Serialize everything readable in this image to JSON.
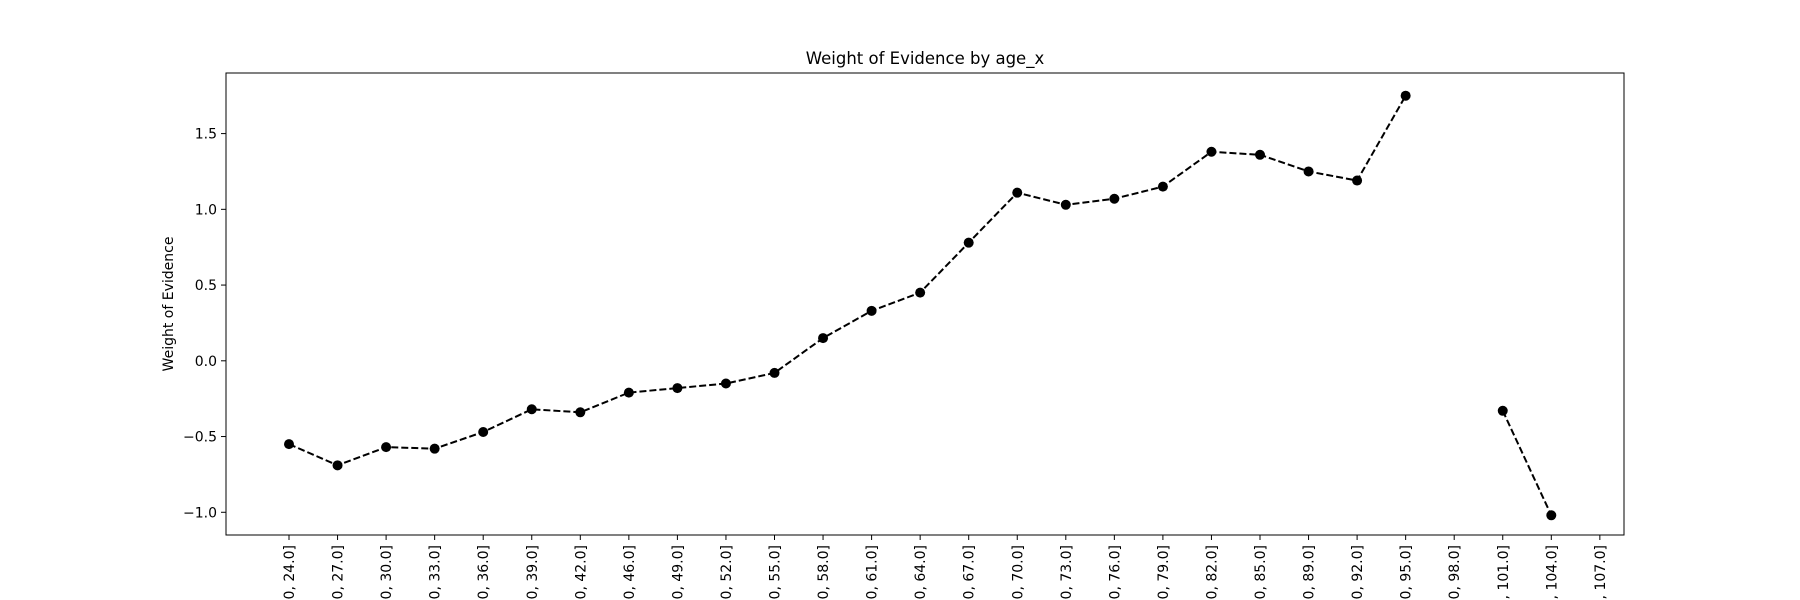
{
  "chart_data": {
    "type": "line",
    "title": "Weight of Evidence by age_x",
    "xlabel": "",
    "ylabel": "Weight of Evidence",
    "ylim": [
      -1.15,
      1.9
    ],
    "yticks": [
      -1.0,
      -0.5,
      0.0,
      0.5,
      1.0,
      1.5
    ],
    "ytick_labels": [
      "−1.0",
      "−0.5",
      "0.0",
      "0.5",
      "1.0",
      "1.5"
    ],
    "grid": false,
    "categories": [
      "0, 24.0]",
      "0, 27.0]",
      "0, 30.0]",
      "0, 33.0]",
      "0, 36.0]",
      "0, 39.0]",
      "0, 42.0]",
      "0, 46.0]",
      "0, 49.0]",
      "0, 52.0]",
      "0, 55.0]",
      "0, 58.0]",
      "0, 61.0]",
      "0, 64.0]",
      "0, 67.0]",
      "0, 70.0]",
      "0, 73.0]",
      "0, 76.0]",
      "0, 79.0]",
      "0, 82.0]",
      "0, 85.0]",
      "0, 89.0]",
      "0, 92.0]",
      "0, 95.0]",
      "0, 98.0]",
      ", 101.0]",
      ", 104.0]",
      "), 107.0]"
    ],
    "values": [
      -0.55,
      -0.69,
      -0.57,
      -0.58,
      -0.47,
      -0.32,
      -0.34,
      -0.21,
      -0.18,
      -0.15,
      -0.08,
      0.15,
      0.33,
      0.45,
      0.78,
      1.11,
      1.03,
      1.07,
      1.15,
      1.38,
      1.36,
      1.25,
      1.19,
      1.75,
      null,
      -0.33,
      -1.02,
      null
    ],
    "series_style": {
      "color": "#000000",
      "line": "dashed",
      "marker": "circle"
    }
  }
}
